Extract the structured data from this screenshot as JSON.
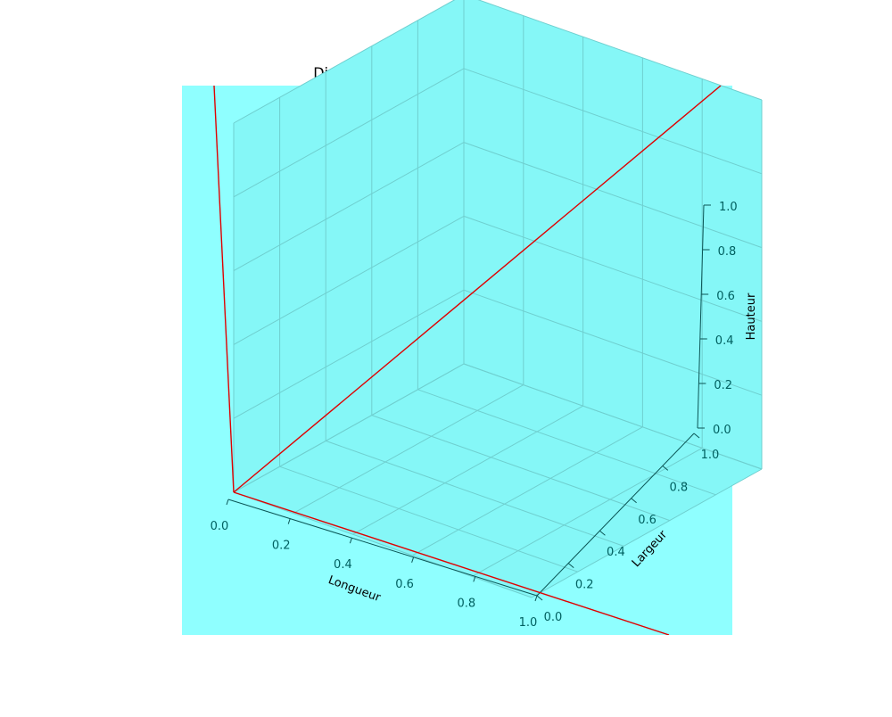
{
  "chart_data": {
    "type": "3d-axes",
    "title": "Disposition des articles dans les cartons",
    "xlabel": "Longueur",
    "ylabel": "Largeur",
    "zlabel": "Hauteur",
    "xlim": [
      0,
      1
    ],
    "ylim": [
      0,
      1
    ],
    "zlim": [
      0,
      1
    ],
    "x_ticks": [
      "0.0",
      "0.2",
      "0.4",
      "0.6",
      "0.8",
      "1.0"
    ],
    "y_ticks": [
      "0.0",
      "0.2",
      "0.4",
      "0.6",
      "0.8",
      "1.0"
    ],
    "z_ticks": [
      "0.0",
      "0.2",
      "0.4",
      "0.6",
      "0.8",
      "1.0"
    ],
    "grid": true,
    "series": [
      {
        "type": "line",
        "label": "",
        "color": "#e00000"
      }
    ]
  },
  "colors": {
    "axes_background": "#8fffff",
    "pane": "#85f7f7",
    "grid": "#6fcfcf",
    "tick_text": "#006060",
    "line": "#e00000"
  }
}
